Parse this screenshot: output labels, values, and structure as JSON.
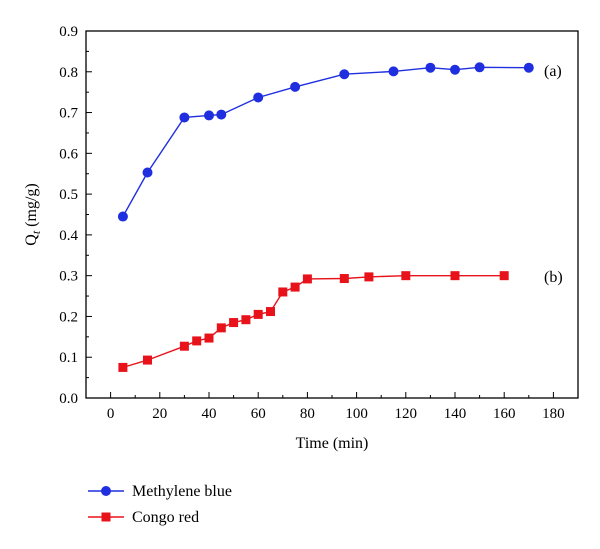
{
  "chart_data": {
    "type": "line",
    "xlabel": "Time (min)",
    "ylabel_main": "Q",
    "ylabel_sub": "t",
    "ylabel_unit": " (mg/g)",
    "xlim": [
      -10,
      190
    ],
    "ylim": [
      0,
      0.9
    ],
    "xticks": [
      0,
      20,
      40,
      60,
      80,
      100,
      120,
      140,
      160,
      180
    ],
    "xtick_labels": [
      "0",
      "20",
      "40",
      "60",
      "80",
      "100",
      "120",
      "140",
      "160",
      "180"
    ],
    "yticks": [
      0,
      0.1,
      0.2,
      0.3,
      0.4,
      0.5,
      0.6,
      0.7,
      0.8,
      0.9
    ],
    "ytick_labels": [
      "0.0",
      "0.1",
      "0.2",
      "0.3",
      "0.4",
      "0.5",
      "0.6",
      "0.7",
      "0.8",
      "0.9"
    ],
    "grid": false,
    "legend_position": "bottom-left-outside",
    "series": [
      {
        "name": "Methylene blue",
        "color": "#1f2fe0",
        "marker": "circle",
        "annotation": "(a)",
        "x": [
          5,
          15,
          30,
          40,
          45,
          60,
          75,
          95,
          115,
          130,
          140,
          150,
          170
        ],
        "y": [
          0.445,
          0.553,
          0.688,
          0.693,
          0.695,
          0.737,
          0.763,
          0.794,
          0.801,
          0.81,
          0.805,
          0.811,
          0.81
        ]
      },
      {
        "name": "Congo red",
        "color": "#e8131a",
        "marker": "square",
        "annotation": "(b)",
        "x": [
          5,
          15,
          30,
          35,
          40,
          45,
          50,
          55,
          60,
          65,
          70,
          75,
          80,
          95,
          105,
          120,
          140,
          160
        ],
        "y": [
          0.075,
          0.093,
          0.127,
          0.14,
          0.147,
          0.172,
          0.185,
          0.192,
          0.205,
          0.212,
          0.26,
          0.272,
          0.292,
          0.293,
          0.297,
          0.3,
          0.3,
          0.3
        ]
      }
    ]
  }
}
